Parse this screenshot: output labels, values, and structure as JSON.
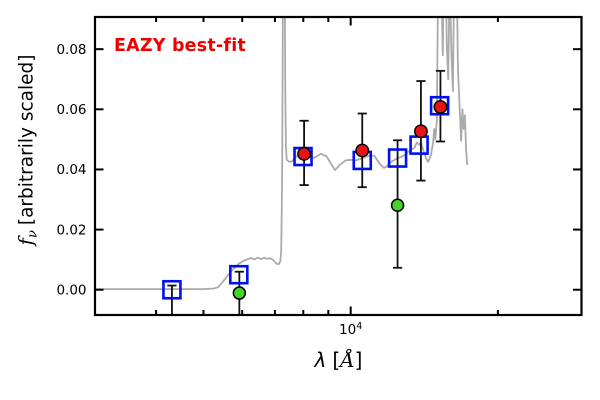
{
  "annotation": {
    "text": "EAZY best-fit"
  },
  "chart_data": {
    "type": "line+scatter",
    "x_scale": "log",
    "xlim": [
      3000,
      29650
    ],
    "ylim": [
      -0.0084,
      0.0907
    ],
    "xlabel": {
      "symbol": "λ",
      "open": "[",
      "unit": "Å",
      "close": "]"
    },
    "ylabel": {
      "symbol": "f",
      "subscript": "ν",
      "rest": "[arbitrarily scaled]"
    },
    "x_axis": {
      "major_tick_value": 10000,
      "major_label_base": "10",
      "major_label_exponent": "4",
      "minor_ticks": [
        4000,
        5000,
        6000,
        7000,
        8000,
        9000,
        20000
      ]
    },
    "y_axis": {
      "ticks": [
        {
          "value": 0.0,
          "label": "0.00"
        },
        {
          "value": 0.02,
          "label": "0.02"
        },
        {
          "value": 0.04,
          "label": "0.04"
        },
        {
          "value": 0.06,
          "label": "0.06"
        },
        {
          "value": 0.08,
          "label": "0.08"
        }
      ]
    },
    "colors": {
      "spectrum": "#aaaaaa",
      "model_square": "#0011ee",
      "observed_red": "#e81414",
      "observed_green": "#43d32a",
      "errorbar": "#111111",
      "frame": "#000000",
      "annotation": "#ee0000"
    },
    "series": {
      "model_spectrum": {
        "marker": "line",
        "points": [
          [
            3000,
            0.0002
          ],
          [
            3500,
            0.0002
          ],
          [
            4000,
            0.0002
          ],
          [
            4500,
            0.0002
          ],
          [
            5000,
            0.0002
          ],
          [
            5250,
            0.0004
          ],
          [
            5355,
            0.0008
          ],
          [
            5500,
            0.003
          ],
          [
            5700,
            0.0062
          ],
          [
            5900,
            0.0086
          ],
          [
            6050,
            0.0097
          ],
          [
            6165,
            0.0102
          ],
          [
            6250,
            0.0106
          ],
          [
            6350,
            0.0101
          ],
          [
            6450,
            0.0107
          ],
          [
            6550,
            0.0102
          ],
          [
            6650,
            0.0106
          ],
          [
            6750,
            0.0103
          ],
          [
            6850,
            0.0105
          ],
          [
            6950,
            0.0098
          ],
          [
            7050,
            0.0087
          ],
          [
            7130,
            0.0085
          ],
          [
            7180,
            0.0095
          ],
          [
            7210,
            0.013
          ],
          [
            7230,
            0.028
          ],
          [
            7245,
            0.042
          ],
          [
            7260,
            0.08
          ],
          [
            7280,
            0.13
          ],
          [
            7320,
            0.13
          ],
          [
            7345,
            0.07
          ],
          [
            7370,
            0.048
          ],
          [
            7400,
            0.0432
          ],
          [
            7500,
            0.0425
          ],
          [
            7600,
            0.0428
          ],
          [
            7700,
            0.044
          ],
          [
            7830,
            0.0448
          ],
          [
            8000,
            0.045
          ],
          [
            8150,
            0.0452
          ],
          [
            8330,
            0.0437
          ],
          [
            8450,
            0.044
          ],
          [
            8690,
            0.0452
          ],
          [
            8930,
            0.0443
          ],
          [
            9100,
            0.042
          ],
          [
            9290,
            0.0398
          ],
          [
            9500,
            0.0415
          ],
          [
            9760,
            0.043
          ],
          [
            10000,
            0.0432
          ],
          [
            10230,
            0.043
          ],
          [
            10500,
            0.0435
          ],
          [
            10720,
            0.0442
          ],
          [
            11000,
            0.0447
          ],
          [
            11180,
            0.0445
          ],
          [
            11450,
            0.042
          ],
          [
            11700,
            0.0405
          ],
          [
            11900,
            0.0412
          ],
          [
            12100,
            0.0425
          ],
          [
            12440,
            0.0437
          ],
          [
            12700,
            0.0442
          ],
          [
            12900,
            0.0448
          ],
          [
            13090,
            0.0458
          ],
          [
            13300,
            0.0465
          ],
          [
            13500,
            0.0472
          ],
          [
            13660,
            0.049
          ],
          [
            13800,
            0.0482
          ],
          [
            13920,
            0.049
          ],
          [
            14100,
            0.046
          ],
          [
            14250,
            0.0438
          ],
          [
            14400,
            0.0425
          ],
          [
            14600,
            0.045
          ],
          [
            14740,
            0.049
          ],
          [
            14820,
            0.0535
          ],
          [
            14900,
            0.05
          ],
          [
            15000,
            0.056
          ],
          [
            15080,
            0.095
          ],
          [
            15150,
            0.13
          ],
          [
            15280,
            0.13
          ],
          [
            15360,
            0.095
          ],
          [
            15430,
            0.078
          ],
          [
            15500,
            0.108
          ],
          [
            15610,
            0.13
          ],
          [
            15720,
            0.082
          ],
          [
            15830,
            0.07
          ],
          [
            15940,
            0.105
          ],
          [
            16060,
            0.08
          ],
          [
            16180,
            0.066
          ],
          [
            16300,
            0.112
          ],
          [
            16440,
            0.118
          ],
          [
            16570,
            0.074
          ],
          [
            16700,
            0.061
          ],
          [
            16820,
            0.0495
          ],
          [
            16920,
            0.06
          ],
          [
            17020,
            0.0535
          ],
          [
            17120,
            0.058
          ],
          [
            17220,
            0.0465
          ],
          [
            17320,
            0.0415
          ]
        ]
      },
      "model_photometry": {
        "marker": "open-square",
        "points": [
          [
            4310,
            0.0
          ],
          [
            5905,
            0.005
          ],
          [
            7990,
            0.0443
          ],
          [
            10560,
            0.043
          ],
          [
            12470,
            0.0438
          ],
          [
            13800,
            0.0481
          ],
          [
            15200,
            0.0612
          ]
        ]
      },
      "observed_red": {
        "marker": "filled-circle",
        "points": [
          {
            "lambda": 8030,
            "flux": 0.0452,
            "upper": 0.0562,
            "lower": 0.0348
          },
          {
            "lambda": 10560,
            "flux": 0.0463,
            "upper": 0.0586,
            "lower": 0.0341
          },
          {
            "lambda": 13920,
            "flux": 0.0527,
            "upper": 0.0694,
            "lower": 0.0363
          },
          {
            "lambda": 15260,
            "flux": 0.0608,
            "upper": 0.0728,
            "lower": 0.0493
          }
        ]
      },
      "observed_green": {
        "marker": "filled-circle",
        "points": [
          {
            "lambda": 5920,
            "flux": -0.0011,
            "upper": 0.006,
            "lower": -0.009,
            "lower_clipped": true
          },
          {
            "lambda": 12470,
            "flux": 0.0281,
            "upper": 0.0497,
            "lower": 0.0073
          }
        ]
      },
      "errorbar_only": {
        "points": [
          {
            "lambda": 4310,
            "upper": 0.0014,
            "lower": -0.009,
            "lower_clipped": true
          }
        ]
      }
    }
  }
}
